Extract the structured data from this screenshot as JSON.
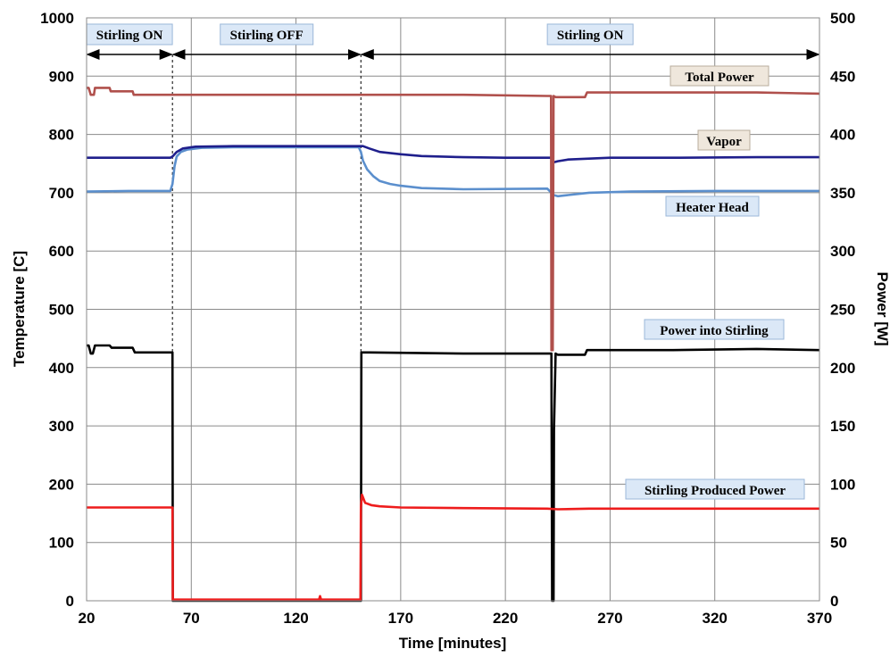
{
  "chart_data": {
    "type": "line",
    "xlabel": "Time [minutes]",
    "ylabel_left": "Temperature [C]",
    "ylabel_right": "Power [W]",
    "xlim": [
      20,
      370
    ],
    "ylim_left": [
      0,
      1000
    ],
    "ylim_right": [
      0,
      500
    ],
    "x_ticks": [
      20,
      70,
      120,
      170,
      220,
      270,
      320,
      370
    ],
    "y_left_ticks": [
      0,
      100,
      200,
      300,
      400,
      500,
      600,
      700,
      800,
      900,
      1000
    ],
    "y_right_ticks": [
      0,
      50,
      100,
      150,
      200,
      250,
      300,
      350,
      400,
      450,
      500
    ],
    "grid": true,
    "phases": [
      {
        "label": "Stirling ON",
        "x0": 20,
        "x1": 61
      },
      {
        "label": "Stirling OFF",
        "x0": 61,
        "x1": 151
      },
      {
        "label": "Stirling ON",
        "x0": 151,
        "x1": 370
      }
    ],
    "series": [
      {
        "name": "Total Power",
        "axis": "right",
        "color": "#b0504c",
        "x": [
          20,
          21,
          22,
          23,
          23.5,
          24,
          31,
          31.5,
          32,
          42,
          42.5,
          43,
          60,
          62,
          65,
          100,
          150,
          155,
          200,
          240,
          241.8,
          242,
          242.6,
          243,
          244,
          250,
          258,
          259,
          260,
          270,
          300,
          340,
          370
        ],
        "y": [
          440,
          440,
          434,
          434,
          434,
          440,
          440,
          437,
          437,
          437,
          434,
          434,
          434,
          434,
          434,
          434,
          434,
          434,
          434,
          433,
          433,
          215,
          215,
          433,
          432,
          432,
          432,
          436,
          436,
          436,
          436,
          436,
          435
        ]
      },
      {
        "name": "Vapor",
        "axis": "left",
        "color": "#1f1f8c",
        "x": [
          20,
          60,
          61,
          63,
          66,
          72,
          90,
          120,
          150,
          152,
          155,
          160,
          170,
          180,
          200,
          220,
          240,
          242,
          243,
          245,
          250,
          270,
          300,
          340,
          370
        ],
        "y": [
          760,
          760,
          762,
          770,
          776,
          779,
          780,
          780,
          780,
          780,
          776,
          770,
          766,
          763,
          761,
          760,
          760,
          760,
          752,
          754,
          757,
          760,
          760,
          761,
          761
        ]
      },
      {
        "name": "Heater Head",
        "axis": "left",
        "color": "#5b8fcd",
        "x": [
          20,
          40,
          60,
          61,
          62,
          63,
          65,
          68,
          75,
          90,
          120,
          150,
          151,
          152,
          154,
          157,
          160,
          165,
          170,
          180,
          200,
          240,
          242,
          243,
          245,
          250,
          260,
          280,
          320,
          370
        ],
        "y": [
          702,
          703,
          703,
          715,
          745,
          762,
          770,
          774,
          777,
          778,
          778,
          778,
          770,
          755,
          740,
          728,
          720,
          715,
          712,
          708,
          706,
          707,
          700,
          696,
          694,
          696,
          700,
          702,
          703,
          703
        ]
      },
      {
        "name": "Power into Stirling",
        "axis": "right",
        "color": "#000000",
        "x": [
          20,
          21,
          22,
          23,
          24,
          31,
          32,
          42,
          43,
          60,
          61,
          61.2,
          151,
          151.2,
          155,
          200,
          241,
          242,
          242.3,
          243,
          243.2,
          244,
          245,
          258,
          259,
          300,
          340,
          370
        ],
        "y": [
          219,
          219,
          212,
          212,
          219,
          219,
          217,
          217,
          213,
          213,
          213,
          0,
          0,
          213,
          213,
          212,
          212,
          212,
          0,
          0,
          147,
          212,
          211,
          211,
          215,
          215,
          216,
          215
        ]
      },
      {
        "name": "Stirling Produced Power",
        "axis": "right",
        "color": "#ee1c1c",
        "x": [
          20,
          60,
          60.5,
          61,
          61.2,
          80,
          100,
          120,
          131,
          131.5,
          132,
          150,
          150.8,
          151,
          151.5,
          153,
          156,
          160,
          170,
          200,
          240,
          245,
          260,
          300,
          370
        ],
        "y": [
          80,
          80,
          80,
          80,
          1,
          1,
          1,
          1,
          1,
          4,
          1,
          1,
          1,
          80,
          91,
          84,
          82,
          81,
          80,
          79.5,
          79,
          78.5,
          79,
          79,
          79
        ]
      }
    ],
    "annotations": [
      {
        "text": "Total Power",
        "style": "tan"
      },
      {
        "text": "Vapor",
        "style": "tan"
      },
      {
        "text": "Heater Head",
        "style": "blue"
      },
      {
        "text": "Power into Stirling",
        "style": "blue"
      },
      {
        "text": "Stirling Produced Power",
        "style": "blue"
      }
    ]
  }
}
